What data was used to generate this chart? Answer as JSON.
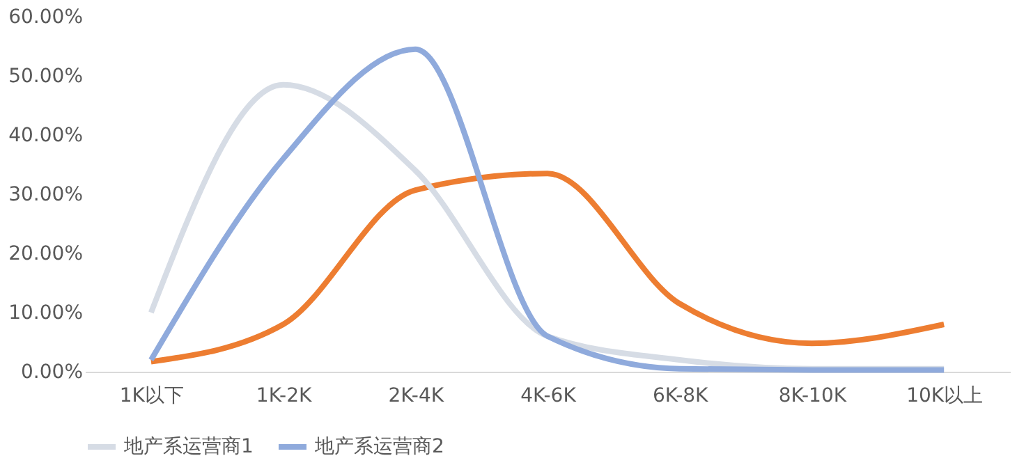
{
  "chart_data": {
    "type": "line",
    "categories": [
      "1K以下",
      "1K-2K",
      "2K-4K",
      "4K-6K",
      "6K-8K",
      "8K-10K",
      "10K以上"
    ],
    "series": [
      {
        "color": "#ed7d31",
        "values": [
          0.017,
          0.08,
          0.307,
          0.335,
          0.115,
          0.048,
          0.08
        ]
      },
      {
        "name": "地产系运营商1",
        "color": "#d6dce5",
        "values": [
          0.1,
          0.485,
          0.34,
          0.06,
          0.02,
          0.005,
          0.005
        ]
      },
      {
        "name": "地产系运营商2",
        "color": "#8faadc",
        "values": [
          0.02,
          0.36,
          0.545,
          0.06,
          0.005,
          0.003,
          0.003
        ]
      }
    ],
    "ylim": [
      0,
      0.6
    ],
    "yticks": [
      {
        "value": 0,
        "label": "0.00%"
      },
      {
        "value": 0.1,
        "label": "10.00%"
      },
      {
        "value": 0.2,
        "label": "20.00%"
      },
      {
        "value": 0.3,
        "label": "30.00%"
      },
      {
        "value": 0.4,
        "label": "40.00%"
      },
      {
        "value": 0.5,
        "label": "50.00%"
      },
      {
        "value": 0.6,
        "label": "60.00%"
      }
    ],
    "grid": false,
    "legend": "bottom",
    "marker": "none",
    "line_style": "solid"
  }
}
